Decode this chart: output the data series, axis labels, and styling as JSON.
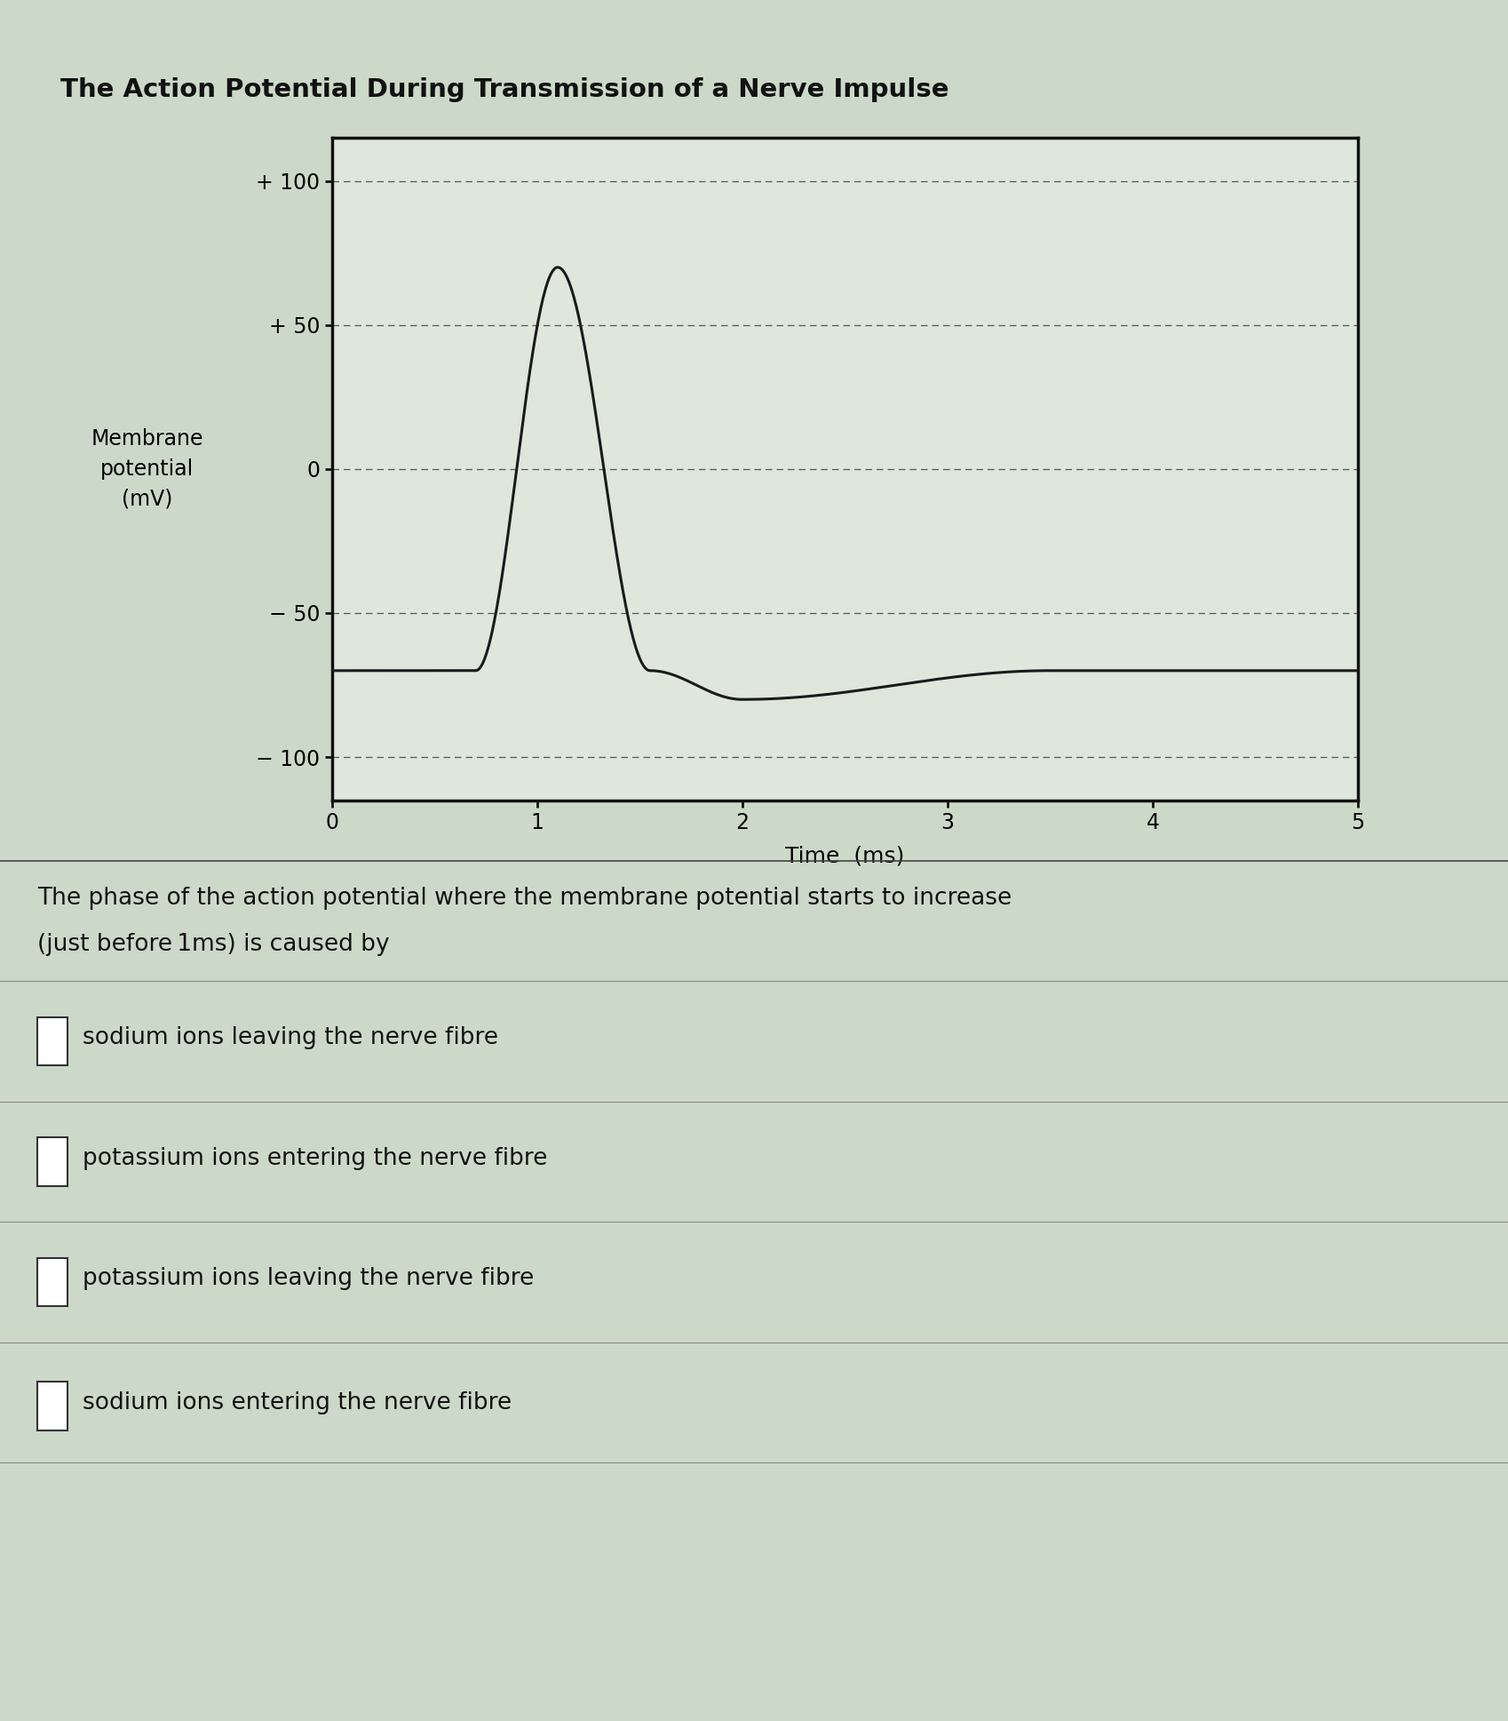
{
  "title": "The Action Potential During Transmission of a Nerve Impulse",
  "ylabel_lines": [
    "Membrane",
    "potential",
    "(mV)"
  ],
  "xlabel": "Time  (ms)",
  "yticks": [
    -100,
    -50,
    0,
    50,
    100
  ],
  "yticklabels": [
    "− 100",
    "− 50",
    "0",
    "+ 50",
    "+ 100"
  ],
  "xticks": [
    0,
    1,
    2,
    3,
    4,
    5
  ],
  "xlim": [
    0,
    5
  ],
  "ylim": [
    -115,
    115
  ],
  "background_color": "#cdd9c8",
  "plot_bg_color": "#dfe6dc",
  "line_color": "#1a1a1a",
  "grid_color": "#555555",
  "question_text1": "The phase of the action potential where the membrane potential starts to increase",
  "question_text2": "(just before 1ms) is caused by",
  "options": [
    "sodium ions leaving the nerve fibre",
    "potassium ions entering the nerve fibre",
    "potassium ions leaving the nerve fibre",
    "sodium ions entering the nerve fibre"
  ],
  "resting_potential": -70,
  "peak_potential": 70,
  "ap_start": 0.7,
  "ap_peak": 1.1,
  "ap_zero_crossing_down": 1.55,
  "ap_trough": 2.0,
  "ap_trough_val": -80,
  "ap_end_undershoot": 3.5
}
